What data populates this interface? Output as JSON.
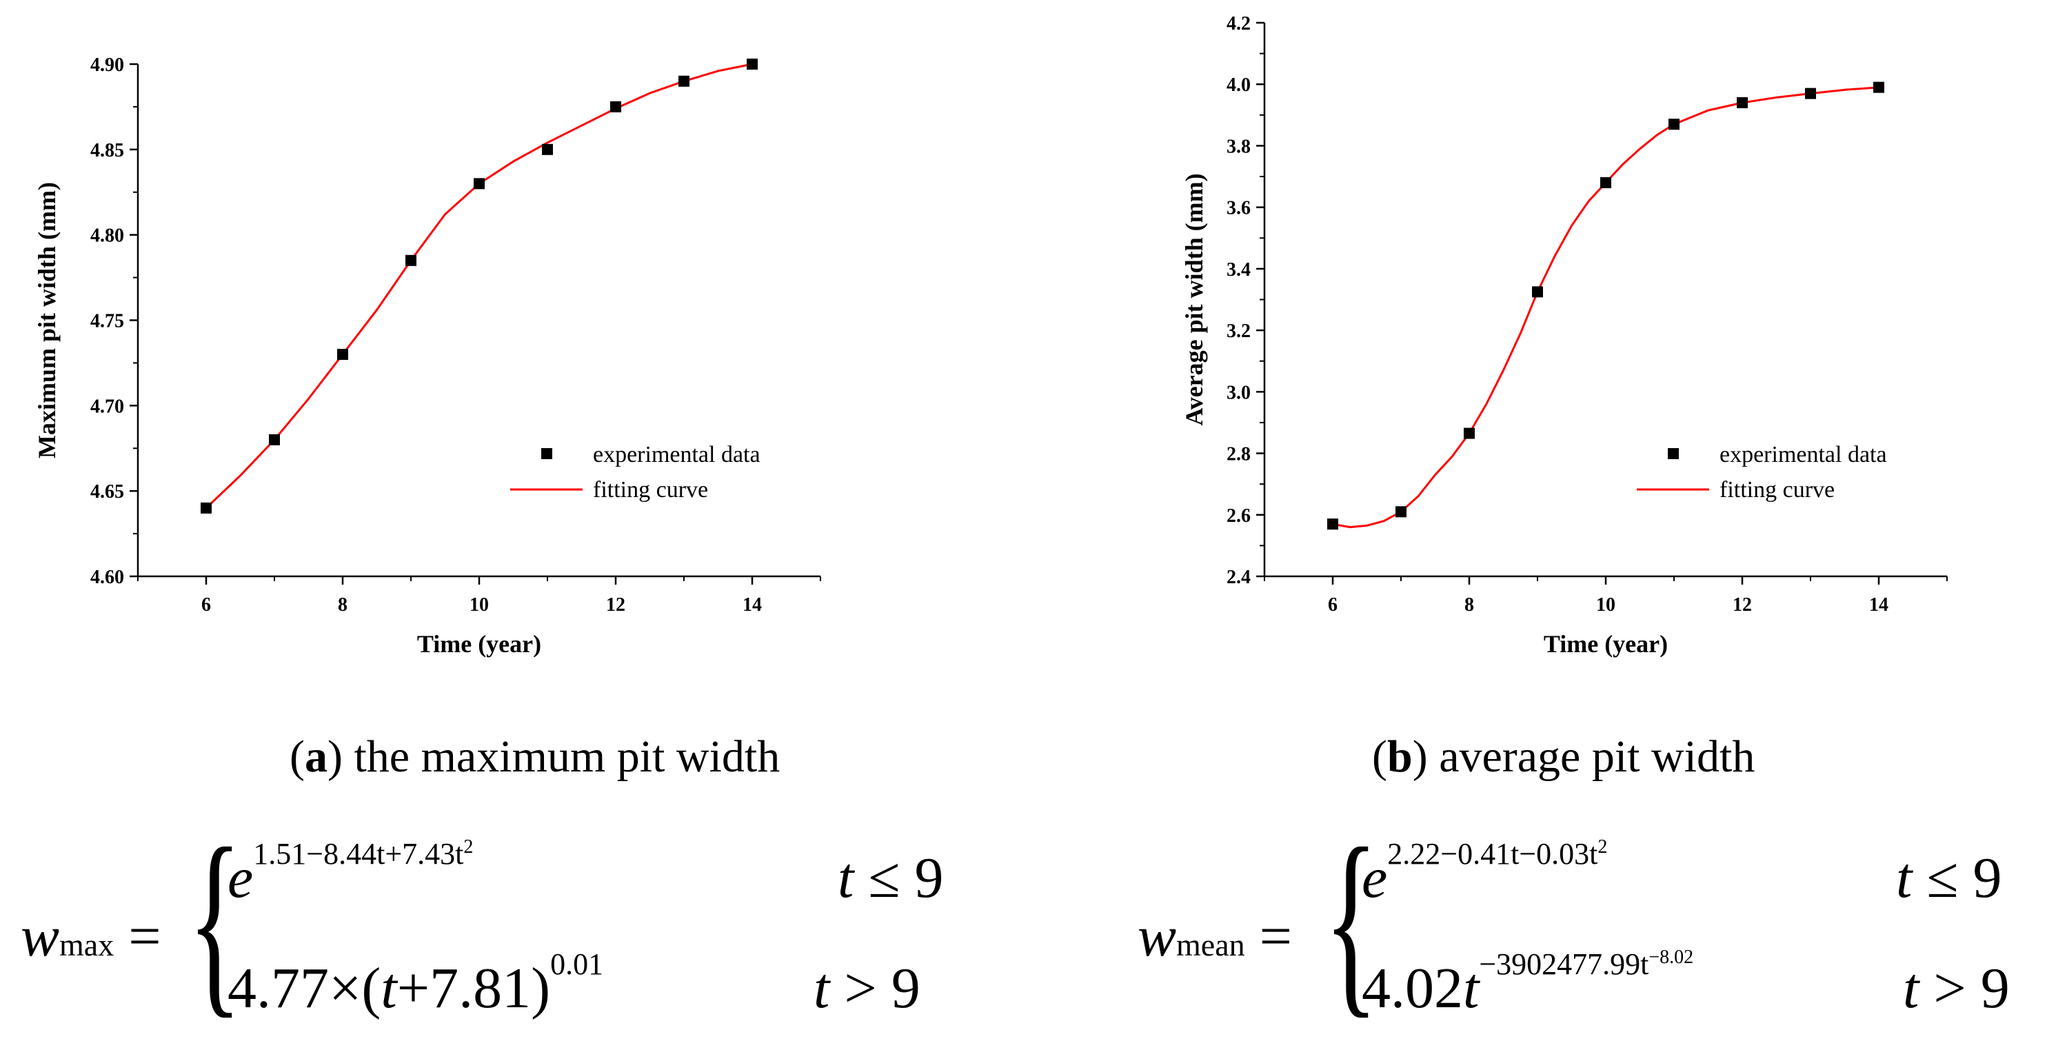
{
  "chart_data": [
    {
      "type": "scatter",
      "title": "",
      "xlabel": "Time (year)",
      "ylabel": "Maximum pit width (mm)",
      "xlim": [
        5,
        15
      ],
      "ylim": [
        4.6,
        4.9
      ],
      "xticks": [
        6,
        8,
        10,
        12,
        14
      ],
      "yticks": [
        4.6,
        4.65,
        4.7,
        4.75,
        4.8,
        4.85,
        4.9
      ],
      "ytick_labels": [
        "4.60",
        "4.65",
        "4.70",
        "4.75",
        "4.80",
        "4.85",
        "4.90"
      ],
      "series": [
        {
          "name": "experimental data",
          "kind": "marker",
          "color": "#000000",
          "x": [
            6,
            7,
            8,
            9,
            10,
            11,
            12,
            13,
            14
          ],
          "y": [
            4.64,
            4.68,
            4.73,
            4.785,
            4.83,
            4.85,
            4.875,
            4.89,
            4.9
          ]
        },
        {
          "name": "fitting curve",
          "kind": "line",
          "color": "#ff0000",
          "x": [
            6,
            6.5,
            7,
            7.5,
            8,
            8.5,
            9,
            9.5,
            10,
            10.5,
            11,
            11.5,
            12,
            12.5,
            13,
            13.5,
            14
          ],
          "y": [
            4.64,
            4.659,
            4.68,
            4.704,
            4.73,
            4.756,
            4.785,
            4.812,
            4.83,
            4.843,
            4.854,
            4.864,
            4.874,
            4.883,
            4.89,
            4.896,
            4.9
          ]
        }
      ],
      "legend_position": "bottom-right",
      "caption_label": "a",
      "caption_text": " the maximum pit width"
    },
    {
      "type": "scatter",
      "title": "",
      "xlabel": "Time (year)",
      "ylabel": "Average pit width (mm)",
      "xlim": [
        5,
        15
      ],
      "ylim": [
        2.4,
        4.2
      ],
      "xticks": [
        6,
        8,
        10,
        12,
        14
      ],
      "yticks": [
        2.4,
        2.6,
        2.8,
        3.0,
        3.2,
        3.4,
        3.6,
        3.8,
        4.0,
        4.2
      ],
      "ytick_labels": [
        "2.4",
        "2.6",
        "2.8",
        "3.0",
        "3.2",
        "3.4",
        "3.6",
        "3.8",
        "4.0",
        "4.2"
      ],
      "series": [
        {
          "name": "experimental data",
          "kind": "marker",
          "color": "#000000",
          "x": [
            6,
            7,
            8,
            9,
            10,
            11,
            12,
            13,
            14
          ],
          "y": [
            2.57,
            2.61,
            2.865,
            3.325,
            3.68,
            3.87,
            3.94,
            3.97,
            3.99
          ]
        },
        {
          "name": "fitting curve",
          "kind": "line",
          "color": "#ff0000",
          "x": [
            6,
            6.25,
            6.5,
            6.75,
            7,
            7.25,
            7.5,
            7.75,
            8,
            8.25,
            8.5,
            8.75,
            9,
            9.25,
            9.5,
            9.75,
            10,
            10.25,
            10.5,
            10.75,
            11,
            11.5,
            12,
            12.5,
            13,
            13.5,
            14
          ],
          "y": [
            2.57,
            2.56,
            2.565,
            2.58,
            2.61,
            2.66,
            2.73,
            2.79,
            2.865,
            2.96,
            3.07,
            3.19,
            3.325,
            3.44,
            3.54,
            3.62,
            3.68,
            3.74,
            3.79,
            3.835,
            3.87,
            3.915,
            3.94,
            3.957,
            3.97,
            3.982,
            3.99
          ]
        }
      ],
      "legend_position": "bottom-right",
      "caption_label": "b",
      "caption_text": " average pit width"
    }
  ],
  "equations": {
    "left": {
      "lhs_var": "w",
      "lhs_sub": "max",
      "equals": "=",
      "case1_base": "e",
      "case1_exp": "1.51−8.44t+7.43t",
      "case1_exp_sq": "2",
      "case1_cond_var": "t",
      "case1_cond": " ≤ 9",
      "case2_pre": "4.77×(",
      "case2_var": "t",
      "case2_mid": "+7.81)",
      "case2_exp": "0.01",
      "case2_cond_var": "t",
      "case2_cond": " > 9"
    },
    "right": {
      "lhs_var": "w",
      "lhs_sub": "mean",
      "equals": "=",
      "case1_base": "e",
      "case1_exp": "2.22−0.41t−0.03t",
      "case1_exp_sq": "2",
      "case1_cond_var": "t",
      "case1_cond": " ≤ 9",
      "case2_pre": "4.02",
      "case2_var": "t",
      "case2_exp": "−3902477.99t",
      "case2_exp_exp": "−8.02",
      "case2_cond_var": "t",
      "case2_cond": " > 9"
    }
  }
}
